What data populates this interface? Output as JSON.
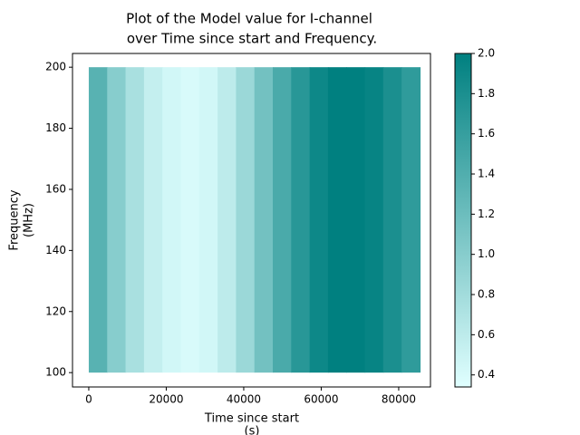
{
  "chart_data": {
    "type": "heatmap",
    "title": [
      "Plot of the Model value for I-channel",
      "over Time since start and Frequency."
    ],
    "x_label": [
      "Time since start",
      "(s)"
    ],
    "y_label": [
      "Frequency",
      "(MHz)"
    ],
    "x_edges": [
      0,
      4750,
      9500,
      14250,
      19000,
      23750,
      28500,
      33250,
      38000,
      42750,
      47500,
      52250,
      57000,
      61750,
      66500,
      71250,
      76000,
      80750,
      85500
    ],
    "y_edges": [
      100,
      200
    ],
    "values": [
      1.35,
      1.0,
      0.75,
      0.55,
      0.45,
      0.4,
      0.45,
      0.6,
      0.85,
      1.15,
      1.45,
      1.7,
      1.9,
      2.0,
      2.0,
      1.95,
      1.8,
      1.65
    ],
    "colormap": [
      "#e0ffff",
      "#008080"
    ],
    "xlim": [
      -4200,
      88200
    ],
    "xticks": [
      0,
      20000,
      40000,
      60000,
      80000
    ],
    "ylim": [
      95.3,
      204.5
    ],
    "yticks": [
      100,
      120,
      140,
      160,
      180,
      200
    ],
    "clim": [
      0.34,
      2.0
    ],
    "cticks": [
      0.4,
      0.6,
      0.8,
      {
        "value": 1,
        "label": "1.0"
      },
      1.2,
      1.4,
      1.6,
      1.8,
      {
        "value": 2,
        "label": "2.0"
      }
    ]
  }
}
